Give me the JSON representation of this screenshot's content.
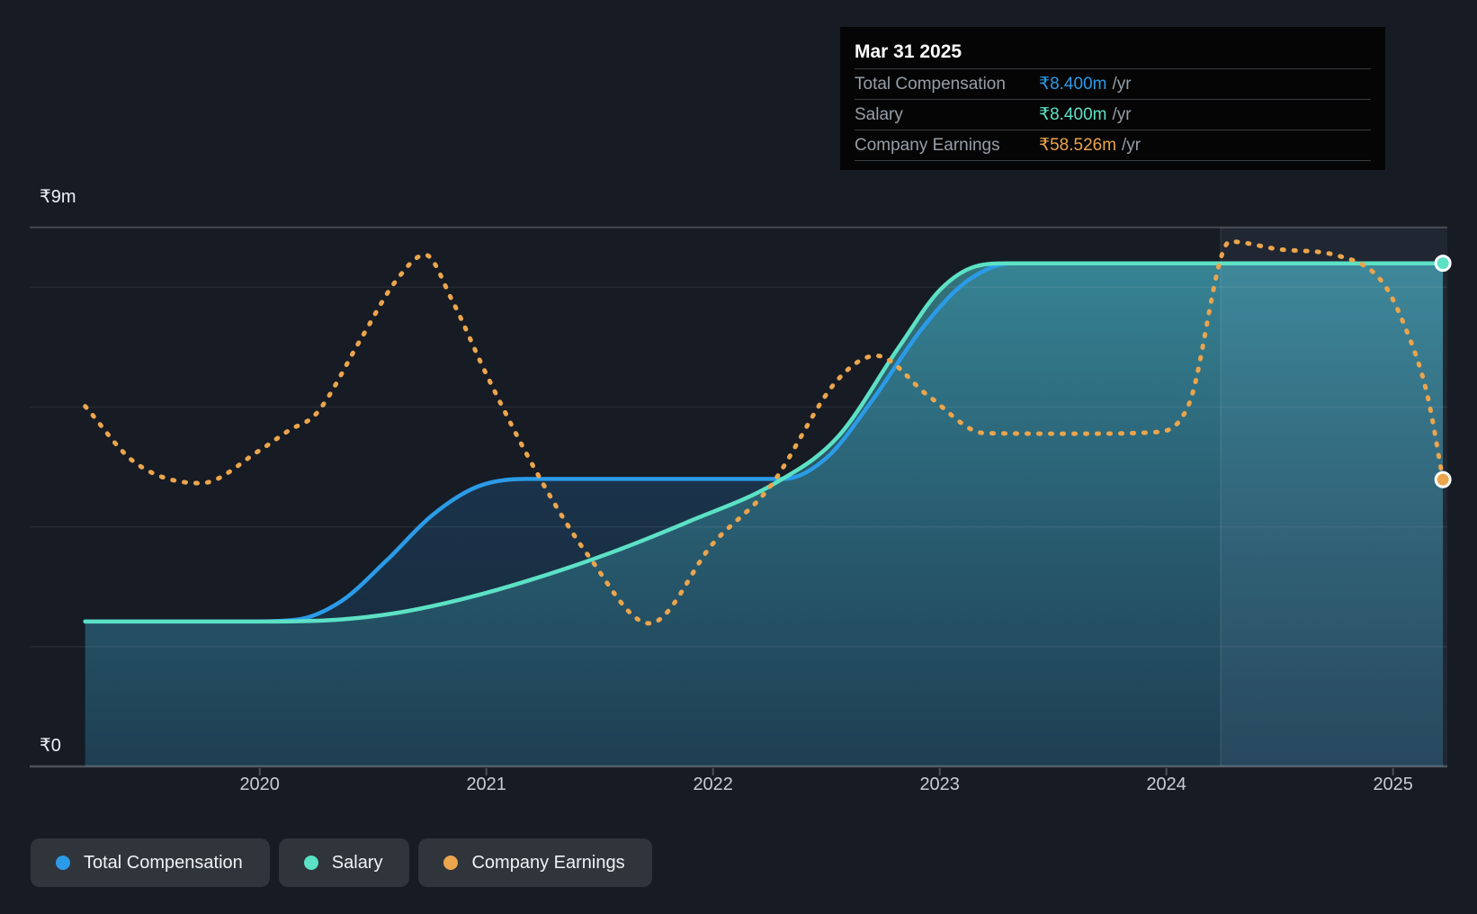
{
  "tooltip": {
    "date": "Mar 31 2025",
    "rows": [
      {
        "label": "Total Compensation",
        "value": "₹8.400m",
        "suffix": "/yr",
        "color": "#2b9be8"
      },
      {
        "label": "Salary",
        "value": "₹8.400m",
        "suffix": "/yr",
        "color": "#5ce1c5"
      },
      {
        "label": "Company Earnings",
        "value": "₹58.526m",
        "suffix": "/yr",
        "color": "#eba54d"
      }
    ]
  },
  "y_axis": {
    "top_label": "₹9m",
    "zero_label": "₹0"
  },
  "x_axis": {
    "ticks": [
      {
        "year": 2020,
        "label": "2020"
      },
      {
        "year": 2021,
        "label": "2021"
      },
      {
        "year": 2022,
        "label": "2022"
      },
      {
        "year": 2023,
        "label": "2023"
      },
      {
        "year": 2024,
        "label": "2024"
      },
      {
        "year": 2025,
        "label": "2025"
      }
    ]
  },
  "legend": {
    "items": [
      {
        "label": "Total Compensation",
        "color": "#2b9be8"
      },
      {
        "label": "Salary",
        "color": "#5ce1c5"
      },
      {
        "label": "Company Earnings",
        "color": "#eba54d"
      }
    ]
  },
  "colors": {
    "background": "#161b24",
    "tooltip_background": "#050505",
    "grid_minor": "rgba(255,255,255,0.065)",
    "grid_major": "rgba(255,255,255,0.20)",
    "axis_line": "rgba(255,255,255,0.24)",
    "highlight_band": "rgba(165,200,235,0.07)",
    "total_comp_line": "#2b9be8",
    "salary_line": "#5ce1c5",
    "earnings_line": "#eba54d",
    "teal_fill_top": "rgba(80,200,205,0.55)",
    "teal_fill_bottom": "rgba(45,110,135,0.33)",
    "blue_fill_top": "rgba(41,151,232,0.28)",
    "blue_fill_bottom": "rgba(41,151,232,0.10)",
    "marker_ring": "#ffffff"
  },
  "chart_data": {
    "type": "line",
    "x_range_years": [
      2019.0,
      2025.24
    ],
    "tooltip_date": "Mar 31 2025",
    "comp_axis": {
      "units": "INR millions",
      "top_value": 9,
      "top_label": "₹9m",
      "zero_label": "₹0",
      "gridline_values": [
        8,
        6,
        4,
        2
      ]
    },
    "earnings_axis": {
      "units": "INR millions",
      "top_value": 110,
      "scale": "approx, aligned so Mar-2025 = 58.526"
    },
    "highlight_band_years": [
      2024.24,
      2025.24
    ],
    "series": [
      {
        "name": "Total Compensation",
        "axis": "comp",
        "style": "solid",
        "color": "#2b9be8",
        "fill": "blue",
        "end_marker": false,
        "points": [
          [
            2019.23,
            2.42
          ],
          [
            2019.6,
            2.42
          ],
          [
            2019.95,
            2.42
          ],
          [
            2020.16,
            2.45
          ],
          [
            2020.36,
            2.76
          ],
          [
            2020.56,
            3.44
          ],
          [
            2020.76,
            4.19
          ],
          [
            2020.96,
            4.67
          ],
          [
            2021.18,
            4.8
          ],
          [
            2021.5,
            4.8
          ],
          [
            2021.9,
            4.8
          ],
          [
            2022.31,
            4.8
          ],
          [
            2022.5,
            5.15
          ],
          [
            2022.7,
            6.1
          ],
          [
            2022.92,
            7.3
          ],
          [
            2023.12,
            8.1
          ],
          [
            2023.32,
            8.4
          ],
          [
            2023.7,
            8.4
          ],
          [
            2024.2,
            8.4
          ],
          [
            2024.7,
            8.4
          ],
          [
            2025.22,
            8.4
          ]
        ]
      },
      {
        "name": "Salary",
        "axis": "comp",
        "style": "solid",
        "color": "#5ce1c5",
        "fill": "teal",
        "end_marker": true,
        "points": [
          [
            2019.23,
            2.42
          ],
          [
            2019.6,
            2.42
          ],
          [
            2020.0,
            2.42
          ],
          [
            2020.3,
            2.44
          ],
          [
            2020.6,
            2.56
          ],
          [
            2020.9,
            2.8
          ],
          [
            2021.2,
            3.12
          ],
          [
            2021.55,
            3.57
          ],
          [
            2021.9,
            4.1
          ],
          [
            2022.27,
            4.72
          ],
          [
            2022.55,
            5.5
          ],
          [
            2022.82,
            7.0
          ],
          [
            2023.0,
            7.95
          ],
          [
            2023.16,
            8.35
          ],
          [
            2023.3,
            8.4
          ],
          [
            2023.7,
            8.4
          ],
          [
            2024.2,
            8.4
          ],
          [
            2024.7,
            8.4
          ],
          [
            2025.22,
            8.4
          ]
        ]
      },
      {
        "name": "Company Earnings",
        "axis": "earnings",
        "style": "dotted",
        "color": "#eba54d",
        "fill": "none",
        "end_marker": true,
        "points": [
          [
            2019.23,
            73.5
          ],
          [
            2019.45,
            62
          ],
          [
            2019.74,
            57.8
          ],
          [
            2020.0,
            64.5
          ],
          [
            2020.13,
            68.6
          ],
          [
            2020.25,
            72
          ],
          [
            2020.45,
            87.5
          ],
          [
            2020.6,
            99
          ],
          [
            2020.73,
            104.4
          ],
          [
            2020.85,
            95
          ],
          [
            2021.0,
            80
          ],
          [
            2021.24,
            58.5
          ],
          [
            2021.45,
            43
          ],
          [
            2021.72,
            29.2
          ],
          [
            2022.0,
            45.5
          ],
          [
            2022.25,
            57
          ],
          [
            2022.55,
            78.9
          ],
          [
            2022.72,
            83.8
          ],
          [
            2022.95,
            75.6
          ],
          [
            2023.2,
            68
          ],
          [
            2023.6,
            67.9
          ],
          [
            2023.95,
            68.2
          ],
          [
            2024.1,
            74
          ],
          [
            2024.28,
            107.1
          ],
          [
            2024.5,
            105.5
          ],
          [
            2024.75,
            104.3
          ],
          [
            2024.95,
            99
          ],
          [
            2025.05,
            90
          ],
          [
            2025.15,
            76
          ],
          [
            2025.22,
            58.526
          ]
        ]
      }
    ]
  }
}
